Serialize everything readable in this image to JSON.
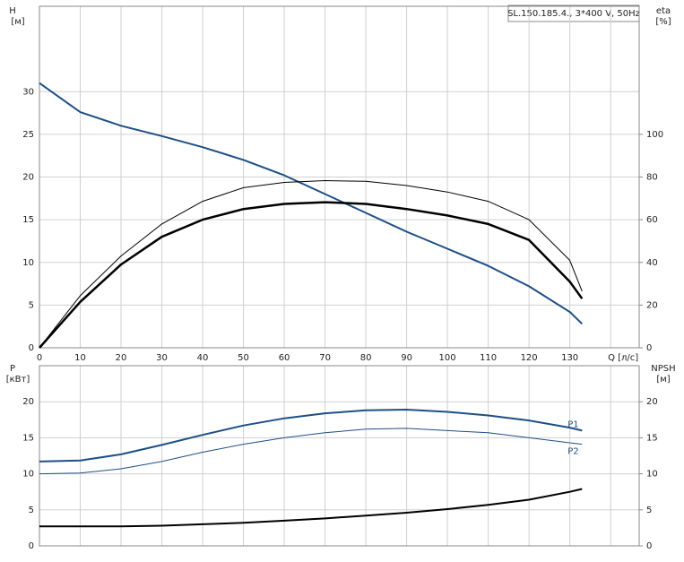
{
  "chart_data": [
    {
      "type": "line",
      "title": "SL.150.185.4., 3*400 V, 50Hz",
      "y_label": "H",
      "y_unit": "[м]",
      "y2_label": "eta",
      "y2_unit": "[%]",
      "x": [
        0,
        10,
        20,
        30,
        40,
        50,
        60,
        70,
        80,
        90,
        100,
        110,
        120,
        130,
        133
      ],
      "xlim": [
        0,
        147
      ],
      "xticks": [
        0,
        10,
        20,
        30,
        40,
        50,
        60,
        70,
        80,
        90,
        100,
        110,
        120,
        130,
        {
          "value": 140,
          "label": "Q [л/с]"
        }
      ],
      "ylim": [
        0,
        40
      ],
      "yticks": [
        0,
        5,
        10,
        15,
        20,
        25,
        30
      ],
      "y2lim": [
        0,
        160
      ],
      "y2ticks": [
        0,
        20,
        40,
        60,
        80,
        100
      ],
      "grid": true,
      "show_xtick_labels": true,
      "series": [
        {
          "color": "#1c4f87",
          "line_width": 2,
          "values": [
            31,
            27.6,
            26,
            24.8,
            23.5,
            22,
            20.2,
            18,
            15.8,
            13.6,
            11.6,
            9.6,
            7.2,
            4.2,
            2.8
          ]
        },
        {
          "color": "#000000",
          "line_width": 1,
          "axis": "y2",
          "values": [
            0,
            24.4,
            43,
            58,
            68.6,
            75,
            77.5,
            78.3,
            78,
            76,
            73,
            68.6,
            60,
            41,
            26.5
          ]
        },
        {
          "color": "#000000",
          "line_width": 2.5,
          "axis": "y2",
          "values": [
            0,
            21.5,
            39,
            52,
            60,
            65,
            67.4,
            68.2,
            67.4,
            65,
            62,
            58,
            50.5,
            31,
            23
          ]
        }
      ]
    },
    {
      "type": "line",
      "y_label": "P",
      "y_unit": "[кВт]",
      "y2_label": "NPSH",
      "y2_unit": "[м]",
      "x": [
        0,
        10,
        20,
        30,
        40,
        50,
        60,
        70,
        80,
        90,
        100,
        110,
        120,
        130,
        133
      ],
      "xlim": [
        0,
        147
      ],
      "xticks": [
        0,
        10,
        20,
        30,
        40,
        50,
        60,
        70,
        80,
        90,
        100,
        110,
        120,
        130,
        140
      ],
      "ylim": [
        0,
        25
      ],
      "yticks": [
        0,
        5,
        10,
        15,
        20
      ],
      "y2lim": [
        0,
        25
      ],
      "y2ticks": [
        0,
        5,
        10,
        15,
        20
      ],
      "grid": true,
      "show_xtick_labels": false,
      "series": [
        {
          "name": "P1",
          "color": "#1c4f87",
          "line_width": 2,
          "values": [
            11.7,
            11.85,
            12.7,
            14,
            15.4,
            16.7,
            17.7,
            18.4,
            18.8,
            18.9,
            18.6,
            18.1,
            17.4,
            16.4,
            16
          ]
        },
        {
          "name": "P2",
          "color": "#1c4f87",
          "line_width": 1,
          "values": [
            10,
            10.1,
            10.7,
            11.7,
            13,
            14.1,
            15,
            15.7,
            16.2,
            16.3,
            16,
            15.7,
            15,
            14.3,
            14.1
          ]
        },
        {
          "color": "#000000",
          "line_width": 2,
          "axis": "y2",
          "values": [
            2.7,
            2.7,
            2.7,
            2.8,
            3,
            3.2,
            3.5,
            3.8,
            4.2,
            4.6,
            5.1,
            5.7,
            6.4,
            7.5,
            7.9
          ]
        }
      ]
    }
  ]
}
